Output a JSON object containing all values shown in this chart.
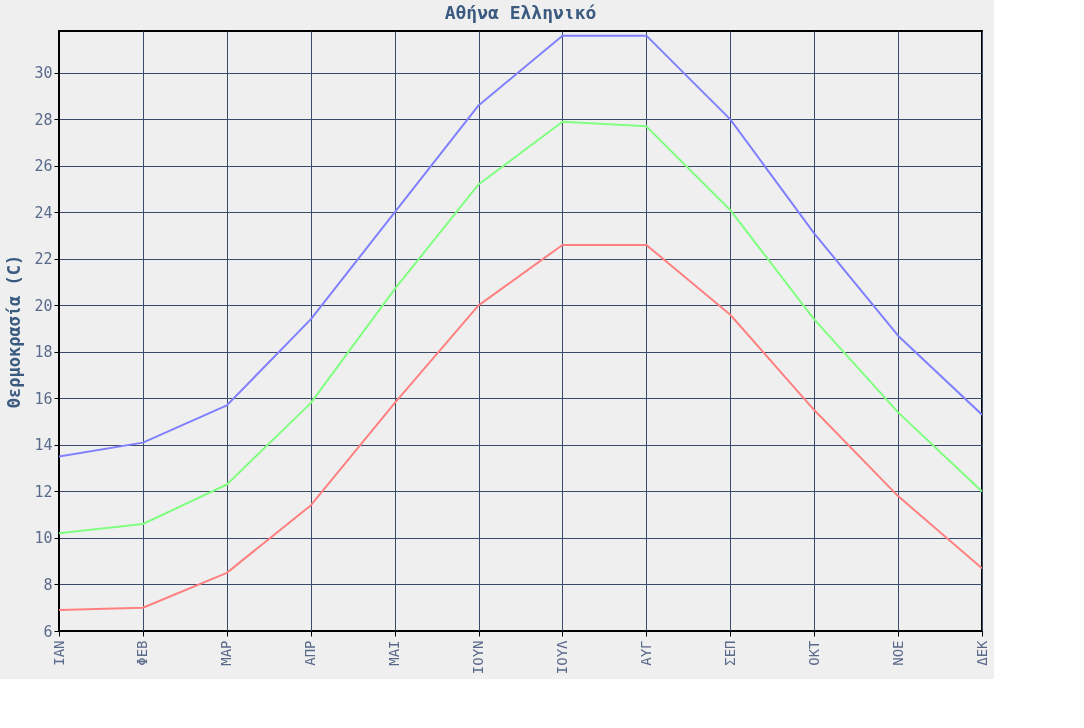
{
  "chart_data": {
    "type": "line",
    "title": "Αθήνα Ελληνικό",
    "ylabel": "Θερμοκρασία (C)",
    "categories": [
      "ΙΑΝ",
      "ΦΕΒ",
      "ΜΑΡ",
      "ΑΠΡ",
      "ΜΑΙ",
      "ΙΟΥΝ",
      "ΙΟΥΛ",
      "ΑΥΓ",
      "ΣΕΠ",
      "ΟΚΤ",
      "ΝΟΕ",
      "ΔΕΚ"
    ],
    "series": [
      {
        "color": "#8080ff",
        "values": [
          13.5,
          14.1,
          15.7,
          19.4,
          24.0,
          28.6,
          31.6,
          31.6,
          28.0,
          23.1,
          18.7,
          15.3
        ]
      },
      {
        "color": "#80ff80",
        "values": [
          10.2,
          10.6,
          12.3,
          15.8,
          20.7,
          25.2,
          27.9,
          27.7,
          24.1,
          19.4,
          15.4,
          12.0
        ]
      },
      {
        "color": "#ff8080",
        "values": [
          6.9,
          7.0,
          8.5,
          11.4,
          15.8,
          20.0,
          22.6,
          22.6,
          19.6,
          15.5,
          11.8,
          8.7
        ]
      }
    ],
    "ylim": [
      6,
      31.8
    ],
    "yticks": [
      6,
      8,
      10,
      12,
      14,
      16,
      18,
      20,
      22,
      24,
      26,
      28,
      30
    ],
    "grid": true,
    "marker": "none",
    "line_style": "solid"
  }
}
